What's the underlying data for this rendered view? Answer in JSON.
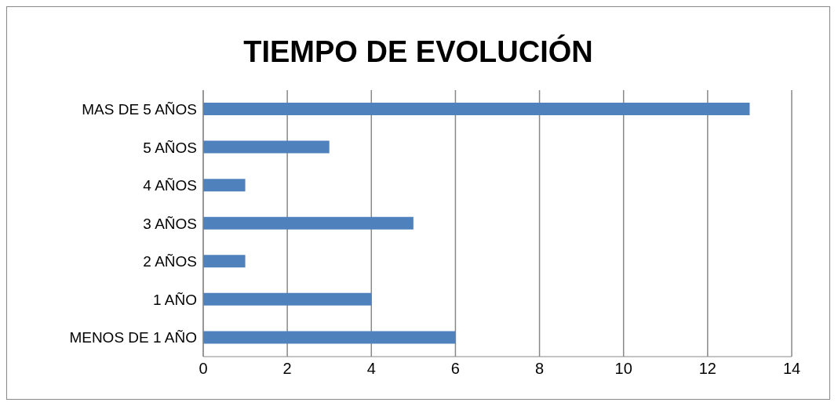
{
  "chart_data": {
    "type": "bar",
    "orientation": "horizontal",
    "title": "TIEMPO DE EVOLUCIÓN",
    "categories": [
      "MAS DE 5 AÑOS",
      "5 AÑOS",
      "4 AÑOS",
      "3 AÑOS",
      "2 AÑOS",
      "1 AÑO",
      "MENOS DE 1 AÑO"
    ],
    "values": [
      13,
      3,
      1,
      5,
      1,
      4,
      6
    ],
    "color": "#4f81bd",
    "xlim": [
      0,
      14
    ],
    "xticks": [
      0,
      2,
      4,
      6,
      8,
      10,
      12,
      14
    ],
    "grid": "x"
  }
}
